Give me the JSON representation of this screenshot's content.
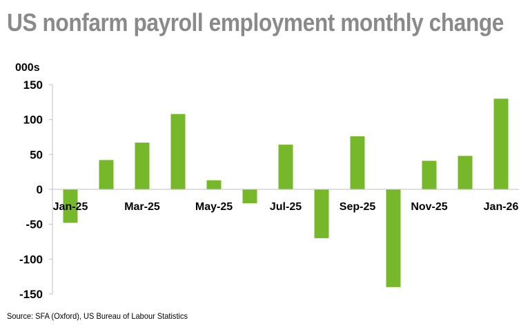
{
  "header": {
    "title": "US nonfarm payroll employment monthly change",
    "unit_label": "000s"
  },
  "footer": {
    "source": "Source: SFA (Oxford), US Bureau of Labour Statistics"
  },
  "colors": {
    "bar": "#77b82a",
    "axis": "#bfbfbf",
    "title": "#8a8a8a"
  },
  "chart_data": {
    "type": "bar",
    "title": "US nonfarm payroll employment monthly change",
    "ylabel": "000s",
    "xlabel": "",
    "categories": [
      "Jan-25",
      "Feb-25",
      "Mar-25",
      "Apr-25",
      "May-25",
      "Jun-25",
      "Jul-25",
      "Aug-25",
      "Sep-25",
      "Oct-25",
      "Nov-25",
      "Dec-25",
      "Jan-26"
    ],
    "tick_labels": [
      "Jan-25",
      "",
      "Mar-25",
      "",
      "May-25",
      "",
      "Jul-25",
      "",
      "Sep-25",
      "",
      "Nov-25",
      "",
      "Jan-26"
    ],
    "values": [
      -48,
      42,
      67,
      108,
      13,
      -20,
      64,
      -70,
      76,
      -140,
      41,
      48,
      130
    ],
    "ylim": [
      -150,
      150
    ],
    "yticks": [
      150,
      100,
      50,
      0,
      -50,
      -100,
      -150
    ],
    "grid": false,
    "legend": "none"
  }
}
